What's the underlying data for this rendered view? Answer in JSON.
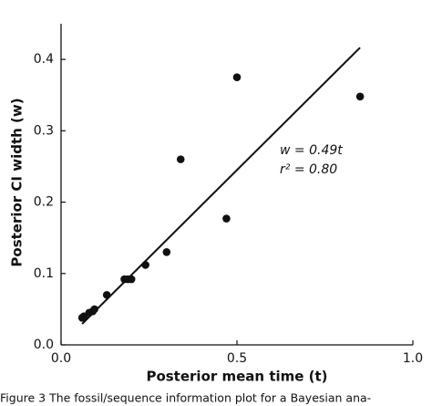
{
  "chart_data": {
    "type": "scatter",
    "x_label": "Posterior mean time (t)",
    "y_label": "Posterior CI width (w)",
    "caption": "Figure 3  The fossil/sequence information plot for a Bayesian ana-",
    "annotations": [
      "w = 0.49t",
      "r² = 0.80"
    ],
    "color": "#111111",
    "x": [
      0.06,
      0.065,
      0.08,
      0.09,
      0.095,
      0.13,
      0.18,
      0.19,
      0.2,
      0.24,
      0.3,
      0.34,
      0.47,
      0.5,
      0.85
    ],
    "values": [
      0.038,
      0.04,
      0.045,
      0.047,
      0.05,
      0.07,
      0.092,
      0.092,
      0.092,
      0.112,
      0.13,
      0.26,
      0.177,
      0.375,
      0.348
    ],
    "fit_line": {
      "x": [
        0.06,
        0.85
      ],
      "y": [
        0.0294,
        0.4165
      ]
    },
    "xlim": [
      0,
      1.0
    ],
    "ylim": [
      0,
      0.45
    ],
    "xticks": [
      {
        "value": 0,
        "label": "0.0"
      },
      0.5,
      {
        "value": 1,
        "label": "1.0"
      }
    ],
    "yticks": [
      {
        "value": 0,
        "label": "0.0"
      },
      0.1,
      0.2,
      0.3,
      0.4
    ]
  }
}
